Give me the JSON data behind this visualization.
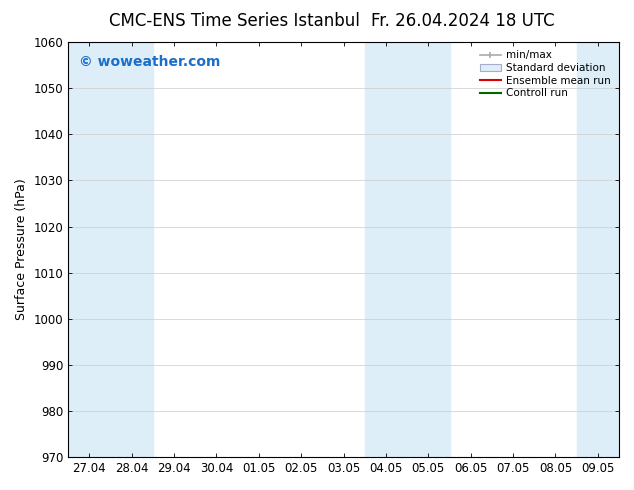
{
  "title_left": "CMC-ENS Time Series Istanbul",
  "title_right": "Fr. 26.04.2024 18 UTC",
  "ylabel": "Surface Pressure (hPa)",
  "ylim": [
    970,
    1060
  ],
  "yticks": [
    970,
    980,
    990,
    1000,
    1010,
    1020,
    1030,
    1040,
    1050,
    1060
  ],
  "xlabels": [
    "27.04",
    "28.04",
    "29.04",
    "30.04",
    "01.05",
    "02.05",
    "03.05",
    "04.05",
    "05.05",
    "06.05",
    "07.05",
    "08.05",
    "09.05"
  ],
  "watermark": "© woweather.com",
  "watermark_color": "#1a6ecc",
  "bg_color": "#ffffff",
  "plot_bg_color": "#ffffff",
  "shaded_band_color": "#ddeef8",
  "shaded_columns": [
    0,
    1,
    7,
    8,
    12
  ],
  "legend_labels": [
    "min/max",
    "Standard deviation",
    "Ensemble mean run",
    "Controll run"
  ],
  "title_fontsize": 12,
  "axis_label_fontsize": 9,
  "tick_fontsize": 8.5,
  "watermark_fontsize": 10
}
